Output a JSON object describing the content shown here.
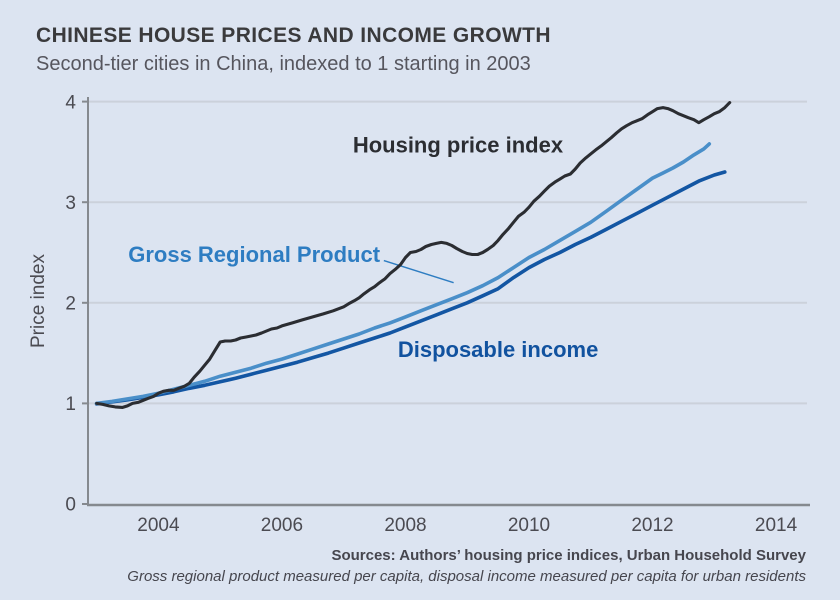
{
  "header": {
    "title": "CHINESE HOUSE PRICES AND INCOME GROWTH",
    "subtitle": "Second-tier cities in China, indexed to 1 starting in 2003"
  },
  "footer": {
    "source_line": "Sources: Authors’ housing price indices, Urban Household Survey",
    "note_line": "Gross regional product measured per capita, disposal income measured per capita for urban residents"
  },
  "colors": {
    "background": "#dce4f1",
    "gridline": "#cbd1db",
    "axis": "#85898f",
    "tick_label": "#4b4b52",
    "housing": "#2b2d32",
    "grp": "#4a8fc9",
    "income": "#1356a3",
    "housing_label": "#2b2d32",
    "grp_label": "#2e7dc2",
    "income_label": "#11529f"
  },
  "chart_data": {
    "type": "line",
    "title": "CHINESE HOUSE PRICES AND INCOME GROWTH",
    "subtitle": "Second-tier cities in China, indexed to 1 starting in 2003",
    "xlabel": "",
    "ylabel": "Price index",
    "xlim": [
      2002.86,
      2014.55
    ],
    "ylim": [
      0,
      4
    ],
    "grid": "horizontal",
    "legend_position": "inline-annotations",
    "x_ticks": [
      {
        "value": 2004,
        "label": "2004"
      },
      {
        "value": 2006,
        "label": "2006"
      },
      {
        "value": 2008,
        "label": "2008"
      },
      {
        "value": 2010,
        "label": "2010"
      },
      {
        "value": 2012,
        "label": "2012"
      },
      {
        "value": 2014,
        "label": "2014"
      }
    ],
    "y_ticks": [
      {
        "value": 0,
        "label": "0"
      },
      {
        "value": 1,
        "label": "1"
      },
      {
        "value": 2,
        "label": "2"
      },
      {
        "value": 3,
        "label": "3"
      },
      {
        "value": 4,
        "label": "4"
      }
    ],
    "series": [
      {
        "id": "income",
        "name": "Disposable income",
        "color_role": "income",
        "stroke_width": 3.6,
        "points": [
          [
            2003,
            0.995
          ],
          [
            2003.25,
            1.015
          ],
          [
            2003.5,
            1.035
          ],
          [
            2003.75,
            1.06
          ],
          [
            2004,
            1.085
          ],
          [
            2004.25,
            1.115
          ],
          [
            2004.5,
            1.15
          ],
          [
            2004.75,
            1.18
          ],
          [
            2005,
            1.215
          ],
          [
            2005.25,
            1.25
          ],
          [
            2005.5,
            1.29
          ],
          [
            2005.75,
            1.33
          ],
          [
            2006,
            1.37
          ],
          [
            2006.25,
            1.41
          ],
          [
            2006.5,
            1.455
          ],
          [
            2006.75,
            1.5
          ],
          [
            2007,
            1.55
          ],
          [
            2007.25,
            1.6
          ],
          [
            2007.5,
            1.65
          ],
          [
            2007.75,
            1.7
          ],
          [
            2008,
            1.76
          ],
          [
            2008.25,
            1.82
          ],
          [
            2008.5,
            1.88
          ],
          [
            2008.75,
            1.94
          ],
          [
            2009,
            2.0
          ],
          [
            2009.25,
            2.07
          ],
          [
            2009.5,
            2.14
          ],
          [
            2009.75,
            2.25
          ],
          [
            2010,
            2.35
          ],
          [
            2010.25,
            2.43
          ],
          [
            2010.5,
            2.5
          ],
          [
            2010.75,
            2.58
          ],
          [
            2011,
            2.65
          ],
          [
            2011.25,
            2.73
          ],
          [
            2011.5,
            2.81
          ],
          [
            2011.75,
            2.89
          ],
          [
            2012,
            2.97
          ],
          [
            2012.25,
            3.05
          ],
          [
            2012.5,
            3.13
          ],
          [
            2012.75,
            3.21
          ],
          [
            2013,
            3.27
          ],
          [
            2013.17,
            3.3
          ]
        ]
      },
      {
        "id": "grp",
        "name": "Gross Regional Product",
        "color_role": "grp",
        "stroke_width": 3.6,
        "points": [
          [
            2003,
            1.0
          ],
          [
            2003.25,
            1.02
          ],
          [
            2003.5,
            1.045
          ],
          [
            2003.75,
            1.07
          ],
          [
            2004,
            1.1
          ],
          [
            2004.25,
            1.14
          ],
          [
            2004.5,
            1.18
          ],
          [
            2004.75,
            1.22
          ],
          [
            2005,
            1.27
          ],
          [
            2005.25,
            1.31
          ],
          [
            2005.5,
            1.35
          ],
          [
            2005.75,
            1.4
          ],
          [
            2006,
            1.44
          ],
          [
            2006.25,
            1.49
          ],
          [
            2006.5,
            1.54
          ],
          [
            2006.75,
            1.59
          ],
          [
            2007,
            1.64
          ],
          [
            2007.25,
            1.69
          ],
          [
            2007.5,
            1.75
          ],
          [
            2007.75,
            1.8
          ],
          [
            2008,
            1.86
          ],
          [
            2008.25,
            1.92
          ],
          [
            2008.5,
            1.98
          ],
          [
            2008.75,
            2.04
          ],
          [
            2009,
            2.1
          ],
          [
            2009.25,
            2.17
          ],
          [
            2009.5,
            2.25
          ],
          [
            2009.75,
            2.35
          ],
          [
            2010,
            2.45
          ],
          [
            2010.25,
            2.53
          ],
          [
            2010.5,
            2.62
          ],
          [
            2010.75,
            2.71
          ],
          [
            2011,
            2.8
          ],
          [
            2011.25,
            2.91
          ],
          [
            2011.5,
            3.02
          ],
          [
            2011.75,
            3.13
          ],
          [
            2012,
            3.24
          ],
          [
            2012.17,
            3.29
          ],
          [
            2012.33,
            3.34
          ],
          [
            2012.5,
            3.4
          ],
          [
            2012.67,
            3.47
          ],
          [
            2012.83,
            3.53
          ],
          [
            2012.92,
            3.58
          ]
        ]
      },
      {
        "id": "housing",
        "name": "Housing price index",
        "color_role": "housing",
        "stroke_width": 3.1,
        "points": [
          [
            2003,
            1.0
          ],
          [
            2003.1,
            0.99
          ],
          [
            2003.2,
            0.975
          ],
          [
            2003.3,
            0.965
          ],
          [
            2003.42,
            0.96
          ],
          [
            2003.5,
            0.975
          ],
          [
            2003.58,
            1.0
          ],
          [
            2003.67,
            1.01
          ],
          [
            2003.75,
            1.03
          ],
          [
            2003.83,
            1.05
          ],
          [
            2003.92,
            1.07
          ],
          [
            2004,
            1.1
          ],
          [
            2004.08,
            1.12
          ],
          [
            2004.17,
            1.13
          ],
          [
            2004.25,
            1.13
          ],
          [
            2004.33,
            1.15
          ],
          [
            2004.42,
            1.17
          ],
          [
            2004.5,
            1.2
          ],
          [
            2004.58,
            1.26
          ],
          [
            2004.67,
            1.32
          ],
          [
            2004.75,
            1.38
          ],
          [
            2004.83,
            1.44
          ],
          [
            2004.92,
            1.53
          ],
          [
            2005,
            1.61
          ],
          [
            2005.08,
            1.62
          ],
          [
            2005.17,
            1.62
          ],
          [
            2005.25,
            1.63
          ],
          [
            2005.33,
            1.65
          ],
          [
            2005.42,
            1.66
          ],
          [
            2005.5,
            1.67
          ],
          [
            2005.58,
            1.68
          ],
          [
            2005.67,
            1.7
          ],
          [
            2005.75,
            1.72
          ],
          [
            2005.83,
            1.74
          ],
          [
            2005.92,
            1.75
          ],
          [
            2006,
            1.77
          ],
          [
            2006.17,
            1.8
          ],
          [
            2006.33,
            1.83
          ],
          [
            2006.5,
            1.86
          ],
          [
            2006.67,
            1.89
          ],
          [
            2006.83,
            1.92
          ],
          [
            2007,
            1.96
          ],
          [
            2007.08,
            1.99
          ],
          [
            2007.17,
            2.02
          ],
          [
            2007.25,
            2.05
          ],
          [
            2007.33,
            2.09
          ],
          [
            2007.42,
            2.13
          ],
          [
            2007.5,
            2.16
          ],
          [
            2007.58,
            2.2
          ],
          [
            2007.67,
            2.24
          ],
          [
            2007.75,
            2.29
          ],
          [
            2007.83,
            2.33
          ],
          [
            2007.92,
            2.38
          ],
          [
            2008,
            2.45
          ],
          [
            2008.08,
            2.5
          ],
          [
            2008.17,
            2.51
          ],
          [
            2008.25,
            2.53
          ],
          [
            2008.33,
            2.56
          ],
          [
            2008.42,
            2.58
          ],
          [
            2008.5,
            2.59
          ],
          [
            2008.58,
            2.6
          ],
          [
            2008.67,
            2.59
          ],
          [
            2008.75,
            2.57
          ],
          [
            2008.83,
            2.54
          ],
          [
            2008.92,
            2.51
          ],
          [
            2009,
            2.49
          ],
          [
            2009.08,
            2.48
          ],
          [
            2009.17,
            2.48
          ],
          [
            2009.25,
            2.5
          ],
          [
            2009.33,
            2.53
          ],
          [
            2009.42,
            2.57
          ],
          [
            2009.5,
            2.62
          ],
          [
            2009.58,
            2.68
          ],
          [
            2009.67,
            2.74
          ],
          [
            2009.75,
            2.8
          ],
          [
            2009.83,
            2.86
          ],
          [
            2009.92,
            2.9
          ],
          [
            2010,
            2.95
          ],
          [
            2010.08,
            3.01
          ],
          [
            2010.17,
            3.06
          ],
          [
            2010.25,
            3.11
          ],
          [
            2010.33,
            3.16
          ],
          [
            2010.42,
            3.2
          ],
          [
            2010.5,
            3.23
          ],
          [
            2010.58,
            3.26
          ],
          [
            2010.67,
            3.28
          ],
          [
            2010.75,
            3.33
          ],
          [
            2010.83,
            3.39
          ],
          [
            2010.92,
            3.44
          ],
          [
            2011,
            3.48
          ],
          [
            2011.08,
            3.52
          ],
          [
            2011.17,
            3.56
          ],
          [
            2011.25,
            3.6
          ],
          [
            2011.33,
            3.64
          ],
          [
            2011.42,
            3.69
          ],
          [
            2011.5,
            3.73
          ],
          [
            2011.58,
            3.76
          ],
          [
            2011.67,
            3.79
          ],
          [
            2011.75,
            3.81
          ],
          [
            2011.83,
            3.83
          ],
          [
            2011.92,
            3.87
          ],
          [
            2012,
            3.9
          ],
          [
            2012.08,
            3.93
          ],
          [
            2012.17,
            3.94
          ],
          [
            2012.25,
            3.93
          ],
          [
            2012.33,
            3.91
          ],
          [
            2012.42,
            3.88
          ],
          [
            2012.5,
            3.86
          ],
          [
            2012.58,
            3.84
          ],
          [
            2012.67,
            3.82
          ],
          [
            2012.75,
            3.79
          ],
          [
            2012.83,
            3.82
          ],
          [
            2012.92,
            3.85
          ],
          [
            2013,
            3.88
          ],
          [
            2013.08,
            3.9
          ],
          [
            2013.17,
            3.94
          ],
          [
            2013.25,
            3.99
          ]
        ]
      }
    ],
    "annotations": [
      {
        "id": "housing-label",
        "text": "Housing price index",
        "color_role": "housing_label",
        "anchor": [
          2008.85,
          3.57
        ]
      },
      {
        "id": "grp-label",
        "text": "Gross Regional Product",
        "color_role": "grp_label",
        "anchor": [
          2005.55,
          2.48
        ]
      },
      {
        "id": "income-label",
        "text": "Disposable income",
        "color_role": "income_label",
        "anchor": [
          2009.5,
          1.54
        ]
      }
    ],
    "leader_line": {
      "from": [
        2007.65,
        2.42
      ],
      "to": [
        2008.78,
        2.2
      ],
      "color_role": "grp_label"
    }
  }
}
